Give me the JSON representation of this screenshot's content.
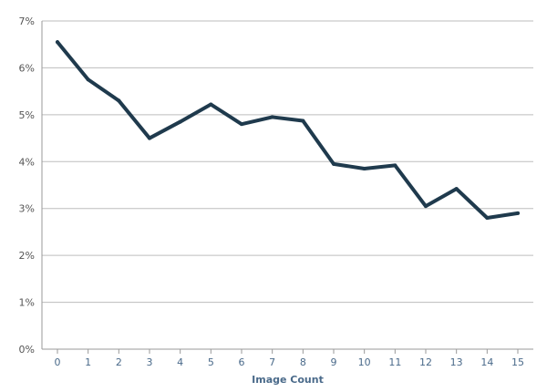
{
  "chart_data": {
    "type": "line",
    "title": "",
    "xlabel": "Image Count",
    "ylabel": "",
    "x": [
      0,
      1,
      2,
      3,
      4,
      5,
      6,
      7,
      8,
      9,
      10,
      11,
      12,
      13,
      14,
      15
    ],
    "x_tick_labels": [
      "0",
      "1",
      "2",
      "3",
      "4",
      "5",
      "6",
      "7",
      "8",
      "9",
      "10",
      "11",
      "12",
      "13",
      "14",
      "15"
    ],
    "y_tick_values": [
      0,
      1,
      2,
      3,
      4,
      5,
      6,
      7
    ],
    "y_tick_labels": [
      "0%",
      "1%",
      "2%",
      "3%",
      "4%",
      "5%",
      "6%",
      "7%"
    ],
    "ylim": [
      0,
      7
    ],
    "grid": true,
    "series": [
      {
        "name": "",
        "values": [
          6.55,
          5.75,
          5.3,
          4.5,
          4.85,
          5.22,
          4.8,
          4.95,
          4.87,
          3.95,
          3.85,
          3.92,
          3.05,
          3.42,
          2.8,
          2.9
        ]
      }
    ],
    "colors": {
      "line": "#1f3a4d",
      "grid": "#bdbdbd",
      "axis": "#9a9a9a"
    }
  }
}
